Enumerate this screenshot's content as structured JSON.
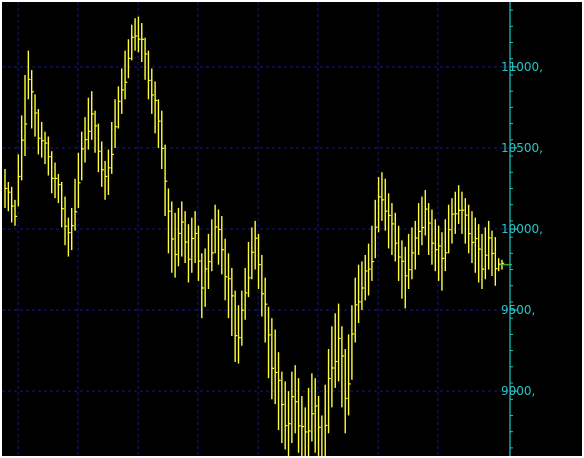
{
  "colors": {
    "background": "#000000",
    "bars": "#ffff33",
    "grid": "#1a1a7a",
    "axis": "#26c6c6",
    "tick_text": "#26c6c6",
    "last_price_marker": "#33aa33"
  },
  "chart_data": {
    "type": "ohlc",
    "title": "",
    "xlabel": "",
    "ylabel": "",
    "ylim": [
      8600,
      11400
    ],
    "yticks": [
      9000,
      9500,
      10000,
      10500,
      11000
    ],
    "ytick_labels": [
      "9000,",
      "9500,",
      "10000,",
      "10500,",
      "11000,"
    ],
    "grid": true,
    "axis_position": "right",
    "series": [
      {
        "style": "high-low bars",
        "values": [
          10250,
          10200,
          10150,
          10100,
          10300,
          10500,
          10700,
          10950,
          10800,
          10700,
          10600,
          10550,
          10500,
          10450,
          10350,
          10300,
          10250,
          10150,
          10050,
          9950,
          10000,
          10150,
          10300,
          10450,
          10550,
          10650,
          10700,
          10600,
          10500,
          10400,
          10300,
          10350,
          10500,
          10650,
          10750,
          10850,
          10950,
          11050,
          11150,
          11200,
          11200,
          11150,
          11050,
          10950,
          10850,
          10750,
          10650,
          10550,
          10300,
          10050,
          9950,
          9900,
          9950,
          10000,
          9950,
          9850,
          9900,
          9950,
          9850,
          9650,
          9700,
          9800,
          9900,
          10000,
          9950,
          9900,
          9750,
          9650,
          9550,
          9400,
          9350,
          9450,
          9600,
          9750,
          9850,
          9900,
          9800,
          9650,
          9500,
          9300,
          9200,
          9150,
          9000,
          8900,
          8850,
          8800,
          8900,
          8950,
          8850,
          8750,
          8700,
          8800,
          8900,
          8850,
          8750,
          8650,
          8800,
          9000,
          9150,
          9250,
          9300,
          9150,
          9000,
          9100,
          9300,
          9500,
          9600,
          9650,
          9700,
          9750,
          9850,
          10000,
          10150,
          10200,
          10150,
          10050,
          10000,
          9950,
          9850,
          9750,
          9700,
          9800,
          9850,
          9900,
          10000,
          10050,
          10100,
          10000,
          9950,
          9900,
          9850,
          9800,
          9900,
          10000,
          10050,
          10100,
          10150,
          10100,
          10050,
          10000,
          9950,
          9900,
          9850,
          9800,
          9850,
          9900,
          9850,
          9800,
          9780,
          9780
        ],
        "spreads": [
          120,
          90,
          110,
          80,
          160,
          200,
          250,
          150,
          180,
          130,
          140,
          110,
          100,
          120,
          130,
          110,
          90,
          140,
          150,
          120,
          130,
          160,
          170,
          150,
          140,
          160,
          150,
          130,
          150,
          140,
          120,
          140,
          160,
          150,
          130,
          140,
          150,
          120,
          110,
          100,
          110,
          120,
          130,
          150,
          140,
          160,
          150,
          180,
          220,
          200,
          220,
          200,
          180,
          170,
          160,
          180,
          170,
          160,
          170,
          200,
          180,
          170,
          160,
          150,
          170,
          180,
          190,
          200,
          210,
          220,
          180,
          170,
          160,
          170,
          160,
          150,
          170,
          190,
          200,
          220,
          250,
          230,
          240,
          220,
          210,
          200,
          220,
          210,
          230,
          220,
          200,
          220,
          210,
          230,
          220,
          200,
          240,
          260,
          250,
          230,
          240,
          250,
          260,
          250,
          230,
          200,
          180,
          150,
          140,
          160,
          170,
          180,
          170,
          150,
          160,
          170,
          160,
          150,
          170,
          180,
          190,
          170,
          160,
          150,
          160,
          150,
          140,
          160,
          170,
          160,
          170,
          180,
          160,
          150,
          140,
          130,
          120,
          130,
          140,
          150,
          160,
          170,
          180,
          170,
          160,
          150,
          140,
          150,
          40,
          30
        ]
      }
    ]
  }
}
